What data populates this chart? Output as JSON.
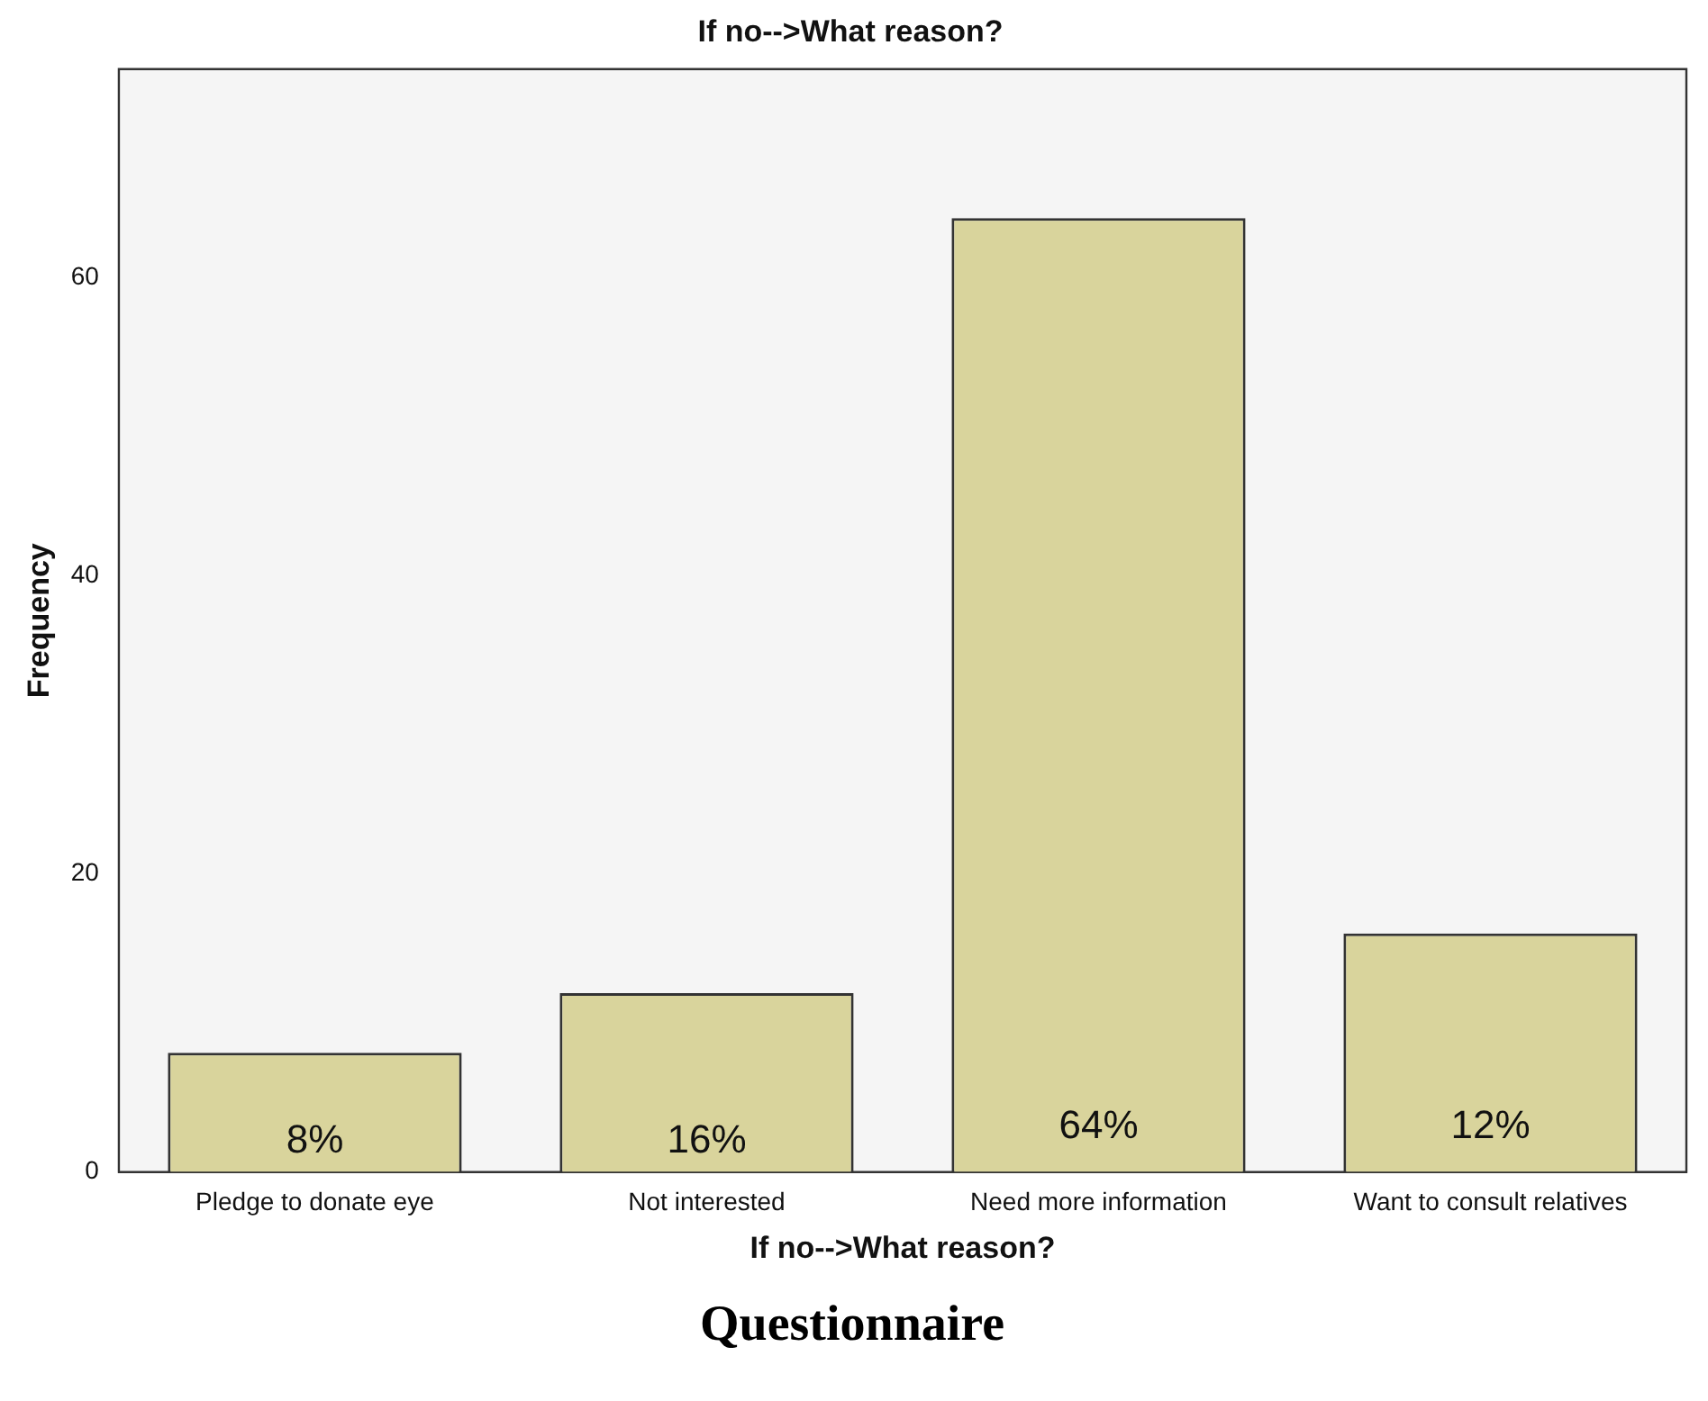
{
  "chart_data": {
    "type": "bar",
    "title": "If no-->What reason?",
    "xlabel": "If no-->What reason?",
    "ylabel": "Frequency",
    "categories": [
      "Pledge to donate eye",
      "Not interested",
      "Need more information",
      "Want to consult relatives"
    ],
    "values": [
      8,
      12,
      64,
      16
    ],
    "color": "#d9d49c",
    "ylim": [
      0,
      74
    ],
    "yticks": [
      0,
      20,
      40,
      60
    ],
    "grid": false,
    "legend": false,
    "annotations": [
      "8%",
      "16%",
      "64%",
      "12%",
      "Questionnaire"
    ]
  }
}
